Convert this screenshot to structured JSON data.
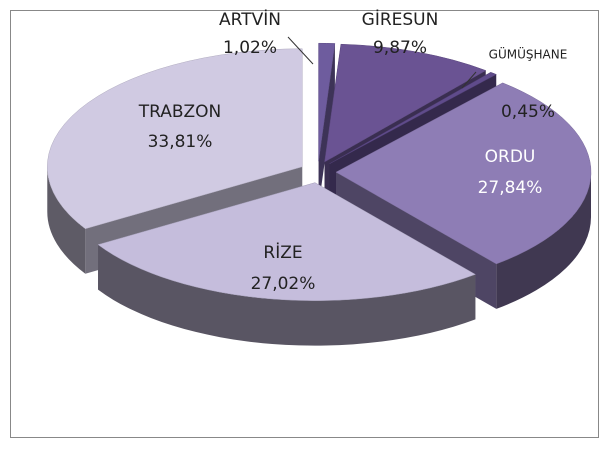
{
  "chart_data": {
    "type": "pie3d",
    "categories": [
      "ARTVİN",
      "GİRESUN",
      "GÜMÜŞHANE",
      "ORDU",
      "RİZE",
      "TRABZON"
    ],
    "values": [
      1.02,
      9.87,
      0.45,
      27.84,
      27.02,
      33.81
    ],
    "value_labels": [
      "1,02%",
      "9,87%",
      "0,45%",
      "27,84%",
      "27,02%",
      "33,81%"
    ],
    "colors": [
      "#6e5c9e",
      "#6a5393",
      "#5f4b8b",
      "#8e7db5",
      "#c5bddc",
      "#d0cae2"
    ]
  }
}
